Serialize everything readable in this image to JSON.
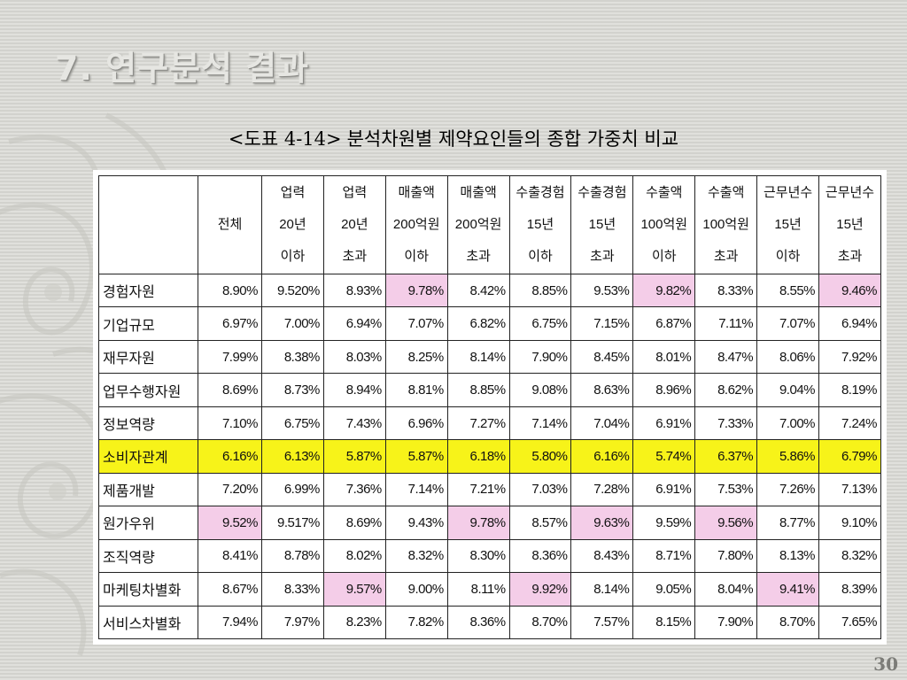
{
  "slide": {
    "title": "7. 연구분석 결과",
    "caption_ref": "<도표 4-14>",
    "caption_text": "분석차원별 제약요인들의 종합 가중치 비교",
    "page_number": "30",
    "highlight_colors": {
      "pink": "#f4cde8",
      "yellow": "#f7f319"
    }
  },
  "table": {
    "headers": [
      {
        "lines": [
          "",
          "전체",
          ""
        ]
      },
      {
        "lines": [
          "업력",
          "20년",
          "이하"
        ]
      },
      {
        "lines": [
          "업력",
          "20년",
          "초과"
        ]
      },
      {
        "lines": [
          "매출액",
          "200억원",
          "이하"
        ]
      },
      {
        "lines": [
          "매출액",
          "200억원",
          "초과"
        ]
      },
      {
        "lines": [
          "수출경험",
          "15년",
          "이하"
        ]
      },
      {
        "lines": [
          "수출경험",
          "15년",
          "초과"
        ]
      },
      {
        "lines": [
          "수출액",
          "100억원",
          "이하"
        ]
      },
      {
        "lines": [
          "수출액",
          "100억원",
          "초과"
        ]
      },
      {
        "lines": [
          "근무년수",
          "15년",
          "이하"
        ]
      },
      {
        "lines": [
          "근무년수",
          "15년",
          "초과"
        ]
      }
    ],
    "rows": [
      {
        "label": "경험자원",
        "values": [
          "8.90%",
          "9.520%",
          "8.93%",
          "9.78%",
          "8.42%",
          "8.85%",
          "9.53%",
          "9.82%",
          "8.33%",
          "8.55%",
          "9.46%"
        ],
        "pink": [
          3,
          7,
          10
        ]
      },
      {
        "label": "기업규모",
        "values": [
          "6.97%",
          "7.00%",
          "6.94%",
          "7.07%",
          "6.82%",
          "6.75%",
          "7.15%",
          "6.87%",
          "7.11%",
          "7.07%",
          "6.94%"
        ],
        "pink": []
      },
      {
        "label": "재무자원",
        "values": [
          "7.99%",
          "8.38%",
          "8.03%",
          "8.25%",
          "8.14%",
          "7.90%",
          "8.45%",
          "8.01%",
          "8.47%",
          "8.06%",
          "7.92%"
        ],
        "pink": []
      },
      {
        "label": "업무수행자원",
        "values": [
          "8.69%",
          "8.73%",
          "8.94%",
          "8.81%",
          "8.85%",
          "9.08%",
          "8.63%",
          "8.96%",
          "8.62%",
          "9.04%",
          "8.19%"
        ],
        "pink": []
      },
      {
        "label": "정보역량",
        "values": [
          "7.10%",
          "6.75%",
          "7.43%",
          "6.96%",
          "7.27%",
          "7.14%",
          "7.04%",
          "6.91%",
          "7.33%",
          "7.00%",
          "7.24%"
        ],
        "pink": []
      },
      {
        "label": "소비자관계",
        "values": [
          "6.16%",
          "6.13%",
          "5.87%",
          "5.87%",
          "6.18%",
          "5.80%",
          "6.16%",
          "5.74%",
          "6.37%",
          "5.86%",
          "6.79%"
        ],
        "pink": [],
        "yellow": true
      },
      {
        "label": "제품개발",
        "values": [
          "7.20%",
          "6.99%",
          "7.36%",
          "7.14%",
          "7.21%",
          "7.03%",
          "7.28%",
          "6.91%",
          "7.53%",
          "7.26%",
          "7.13%"
        ],
        "pink": []
      },
      {
        "label": "원가우위",
        "values": [
          "9.52%",
          "9.517%",
          "8.69%",
          "9.43%",
          "9.78%",
          "8.57%",
          "9.63%",
          "9.59%",
          "9.56%",
          "8.77%",
          "9.10%"
        ],
        "pink": [
          0,
          4,
          6,
          8
        ]
      },
      {
        "label": "조직역량",
        "values": [
          "8.41%",
          "8.78%",
          "8.02%",
          "8.32%",
          "8.30%",
          "8.36%",
          "8.43%",
          "8.71%",
          "7.80%",
          "8.13%",
          "8.32%"
        ],
        "pink": []
      },
      {
        "label": "마케팅차별화",
        "values": [
          "8.67%",
          "8.33%",
          "9.57%",
          "9.00%",
          "8.11%",
          "9.92%",
          "8.14%",
          "9.05%",
          "8.04%",
          "9.41%",
          "8.39%"
        ],
        "pink": [
          2,
          5,
          9
        ]
      },
      {
        "label": "서비스차별화",
        "values": [
          "7.94%",
          "7.97%",
          "8.23%",
          "7.82%",
          "8.36%",
          "8.70%",
          "7.57%",
          "8.15%",
          "7.90%",
          "8.70%",
          "7.65%"
        ],
        "pink": []
      }
    ]
  }
}
